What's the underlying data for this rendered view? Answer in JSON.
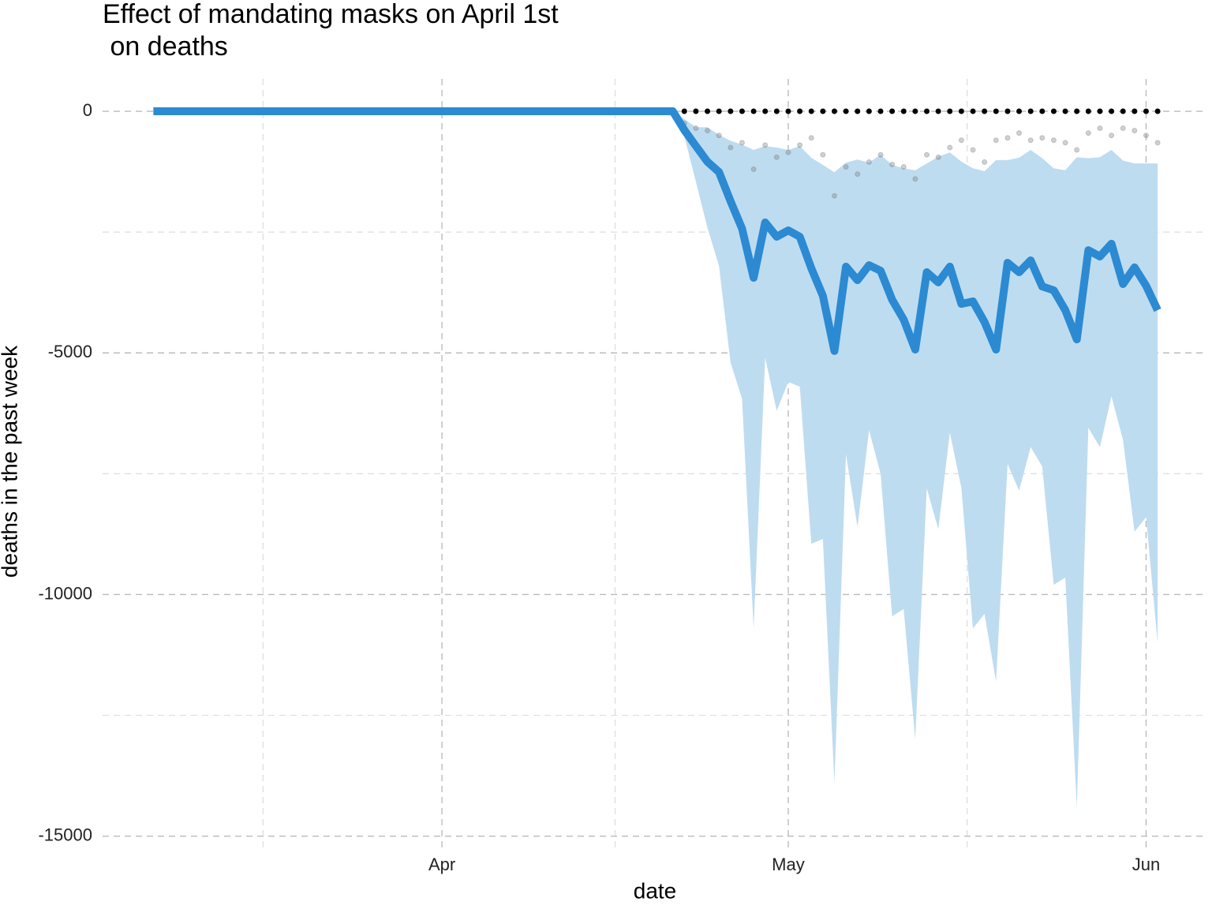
{
  "chart_data": {
    "type": "line",
    "title": [
      "Effect of mandating masks on April 1st",
      " on deaths"
    ],
    "x_label": "date",
    "y_label": "deaths in the past week",
    "x": [
      67,
      68,
      69,
      70,
      71,
      72,
      73,
      74,
      75,
      76,
      77,
      78,
      79,
      80,
      81,
      82,
      83,
      84,
      85,
      86,
      87,
      88,
      89,
      90,
      91,
      92,
      93,
      94,
      95,
      96,
      97,
      98,
      99,
      100,
      101,
      102,
      103,
      104,
      105,
      106,
      107,
      108,
      109,
      110,
      111,
      112,
      113,
      114,
      115,
      116,
      117,
      118,
      119,
      120,
      121,
      122,
      123,
      124,
      125,
      126,
      127,
      128,
      129,
      130,
      131,
      132,
      133,
      134,
      135,
      136,
      137,
      138,
      139,
      140,
      141,
      142,
      143,
      144,
      145,
      146,
      147,
      148,
      149,
      150,
      151,
      152,
      153,
      154
    ],
    "values": [
      0,
      0,
      0,
      0,
      0,
      0,
      0,
      0,
      0,
      0,
      0,
      0,
      0,
      0,
      0,
      0,
      0,
      0,
      0,
      0,
      0,
      0,
      0,
      0,
      0,
      0,
      0,
      0,
      0,
      0,
      0,
      0,
      0,
      0,
      0,
      0,
      0,
      0,
      0,
      0,
      0,
      0,
      0,
      0,
      0,
      0,
      -390,
      -720,
      -1045,
      -1257,
      -1860,
      -2430,
      -3445,
      -2300,
      -2595,
      -2465,
      -2595,
      -3250,
      -3820,
      -4960,
      -3215,
      -3495,
      -3185,
      -3300,
      -3900,
      -4310,
      -4930,
      -3330,
      -3540,
      -3215,
      -3985,
      -3935,
      -4360,
      -4930,
      -3135,
      -3330,
      -3085,
      -3625,
      -3705,
      -4115,
      -4720,
      -2875,
      -3005,
      -2740,
      -3575,
      -3230,
      -3610,
      -4115
    ],
    "color": "#2b8ad2",
    "band_upper": [
      0,
      0,
      0,
      0,
      0,
      0,
      0,
      0,
      0,
      0,
      0,
      0,
      0,
      0,
      0,
      0,
      0,
      0,
      0,
      0,
      0,
      0,
      0,
      0,
      0,
      0,
      0,
      0,
      0,
      0,
      0,
      0,
      0,
      0,
      0,
      0,
      0,
      0,
      0,
      0,
      0,
      0,
      0,
      0,
      0,
      0,
      -160,
      -330,
      -330,
      -490,
      -610,
      -690,
      -800,
      -720,
      -750,
      -800,
      -720,
      -960,
      -1110,
      -1260,
      -1060,
      -1000,
      -1060,
      -900,
      -1110,
      -1180,
      -1220,
      -1080,
      -940,
      -850,
      -1040,
      -1180,
      -1240,
      -1010,
      -1010,
      -960,
      -800,
      -970,
      -1180,
      -1220,
      -950,
      -970,
      -950,
      -800,
      -1020,
      -1080,
      -1080,
      -1080
    ],
    "band_lower": [
      0,
      0,
      0,
      0,
      0,
      0,
      0,
      0,
      0,
      0,
      0,
      0,
      0,
      0,
      0,
      0,
      0,
      0,
      0,
      0,
      0,
      0,
      0,
      0,
      0,
      0,
      0,
      0,
      0,
      0,
      0,
      0,
      0,
      0,
      0,
      0,
      0,
      0,
      0,
      0,
      0,
      0,
      0,
      0,
      0,
      0,
      -520,
      -1460,
      -2410,
      -3200,
      -5200,
      -5950,
      -10700,
      -5100,
      -6200,
      -5600,
      -5700,
      -8950,
      -8850,
      -13900,
      -7100,
      -8600,
      -6600,
      -7500,
      -10450,
      -10300,
      -13000,
      -7800,
      -8650,
      -6650,
      -7800,
      -10700,
      -10400,
      -11800,
      -7300,
      -7850,
      -6950,
      -7350,
      -9800,
      -9650,
      -14400,
      -6550,
      -6950,
      -5900,
      -6800,
      -8700,
      -8400,
      -11000
    ],
    "band_color": "#bedcf0",
    "points_zero": {
      "x": [
        112,
        113,
        114,
        115,
        116,
        117,
        118,
        119,
        120,
        121,
        122,
        123,
        124,
        125,
        126,
        127,
        128,
        129,
        130,
        131,
        132,
        133,
        134,
        135,
        136,
        137,
        138,
        139,
        140,
        141,
        142,
        143,
        144,
        145,
        146,
        147,
        148,
        149,
        150,
        151,
        152,
        153,
        154
      ],
      "y": [
        0,
        0,
        0,
        0,
        0,
        0,
        0,
        0,
        0,
        0,
        0,
        0,
        0,
        0,
        0,
        0,
        0,
        0,
        0,
        0,
        0,
        0,
        0,
        0,
        0,
        0,
        0,
        0,
        0,
        0,
        0,
        0,
        0,
        0,
        0,
        0,
        0,
        0,
        0,
        0,
        0,
        0,
        0
      ],
      "color": "#000000"
    },
    "points": {
      "x": [
        113,
        114,
        115,
        116,
        117,
        118,
        119,
        120,
        121,
        122,
        123,
        124,
        125,
        126,
        127,
        128,
        129,
        130,
        131,
        132,
        133,
        134,
        135,
        136,
        137,
        138,
        139,
        140,
        141,
        142,
        143,
        144,
        145,
        146,
        147,
        148,
        149,
        150,
        151,
        152,
        153,
        154
      ],
      "y": [
        -250,
        -350,
        -400,
        -500,
        -750,
        -650,
        -1200,
        -700,
        -950,
        -850,
        -700,
        -550,
        -900,
        -1750,
        -1150,
        -1300,
        -1050,
        -900,
        -1100,
        -1150,
        -1400,
        -900,
        -950,
        -750,
        -600,
        -800,
        -1050,
        -600,
        -550,
        -450,
        -600,
        -550,
        -600,
        -650,
        -800,
        -450,
        -350,
        -500,
        -350,
        -400,
        -500,
        -650
      ],
      "color": "#777777"
    },
    "xlim": [
      62.6,
      158.3
    ],
    "xticks": [
      {
        "value": 92,
        "label": "Apr"
      },
      {
        "value": 122,
        "label": "May"
      },
      {
        "value": 153,
        "label": "Jun"
      }
    ],
    "x_minor_ticks": [
      76.5,
      107,
      137.5
    ],
    "ylim": [
      -15250,
      670
    ],
    "yticks": [
      -15000,
      -10000,
      -5000,
      0
    ],
    "y_minor_ticks": [
      -12500,
      -7500,
      -2500
    ],
    "grid": true
  }
}
